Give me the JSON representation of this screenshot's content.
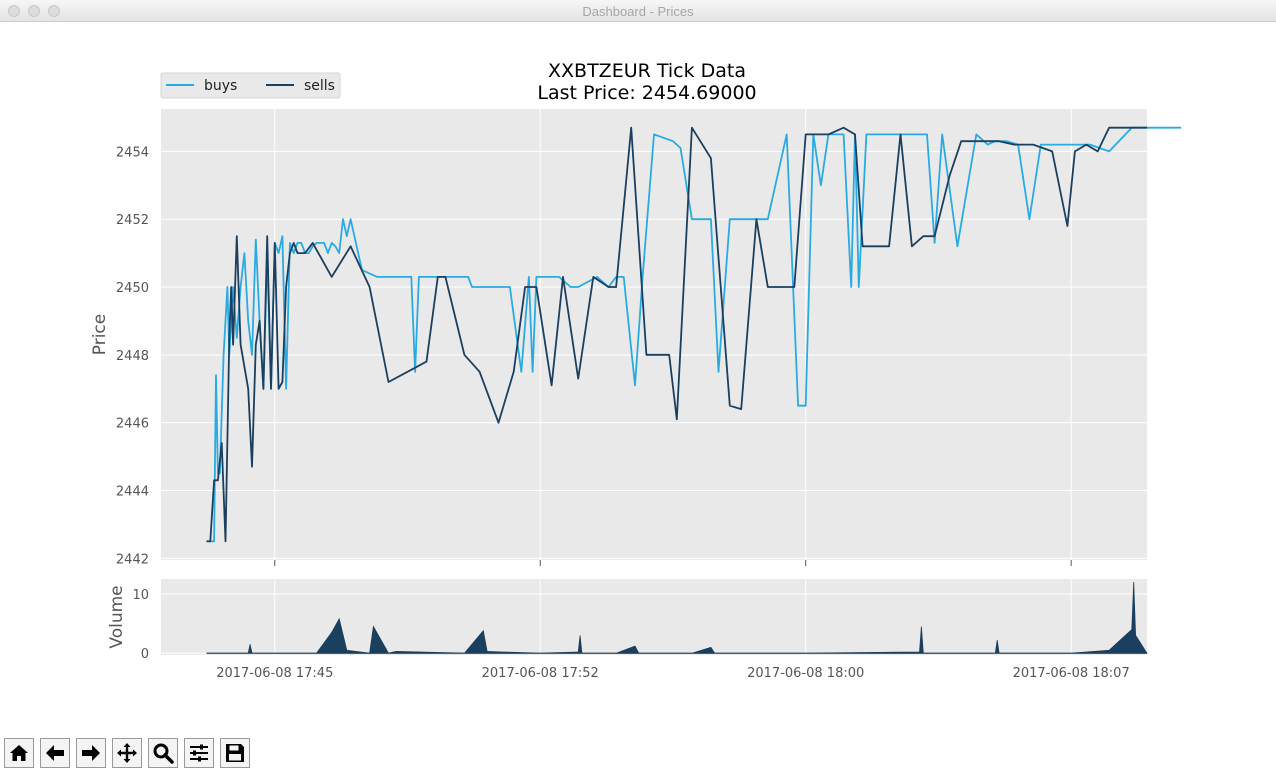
{
  "window": {
    "title": "Dashboard - Prices"
  },
  "toolbar": {
    "buttons": [
      {
        "icon": "home-icon"
      },
      {
        "icon": "back-arrow-icon"
      },
      {
        "icon": "forward-arrow-icon"
      },
      {
        "icon": "pan-icon"
      },
      {
        "icon": "zoom-icon"
      },
      {
        "icon": "configure-subplots-icon"
      },
      {
        "icon": "save-icon"
      }
    ]
  },
  "colors": {
    "buys": "#29abe2",
    "sells": "#1b3f5e",
    "plot_bg": "#e9e9e9",
    "grid": "#ffffff"
  },
  "chart_data": [
    {
      "type": "line",
      "title": "XXBTZEUR Tick Data",
      "subtitle": "Last Price: 2454.69000",
      "ylabel": "Price",
      "xlabel": "",
      "legend": {
        "position": "top-left",
        "entries": [
          "buys",
          "sells"
        ]
      },
      "grid": true,
      "ylim": [
        2441.95,
        2455.25
      ],
      "yticks": [
        2442,
        2444,
        2446,
        2448,
        2450,
        2452,
        2454
      ],
      "xlim_minutes": [
        0,
        26.0
      ],
      "x_unit": "minutes after 2017-06-08 17:42",
      "xticks": [
        {
          "x": 3.0,
          "label": "2017-06-08 17:45"
        },
        {
          "x": 10.0,
          "label": "2017-06-08 17:52"
        },
        {
          "x": 17.0,
          "label": "2017-06-08 18:00"
        },
        {
          "x": 24.0,
          "label": "2017-06-08 18:07"
        }
      ],
      "series": [
        {
          "name": "buys",
          "x": [
            1.3,
            1.4,
            1.45,
            1.5,
            1.55,
            1.65,
            1.75,
            1.8,
            1.9,
            2.0,
            2.1,
            2.2,
            2.3,
            2.4,
            2.5,
            2.6,
            2.7,
            2.8,
            2.9,
            3.0,
            3.1,
            3.2,
            3.3,
            3.4,
            3.5,
            3.6,
            3.7,
            3.8,
            3.9,
            4.0,
            4.1,
            4.2,
            4.3,
            4.4,
            4.5,
            4.6,
            4.7,
            4.8,
            4.9,
            5.0,
            5.3,
            5.7,
            6.0,
            6.3,
            6.6,
            6.7,
            6.8,
            7.0,
            7.5,
            7.8,
            8.0,
            8.1,
            8.2,
            8.5,
            8.8,
            9.2,
            9.5,
            9.7,
            9.8,
            9.9,
            10.4,
            10.5,
            10.8,
            11.0,
            11.5,
            11.8,
            12.0,
            12.2,
            12.5,
            12.7,
            13.0,
            13.5,
            13.7,
            14.0,
            14.5,
            14.7,
            15.0,
            15.2,
            15.5,
            15.7,
            16.0,
            16.5,
            16.8,
            17.0,
            17.2,
            17.4,
            17.6,
            17.8,
            18.0,
            18.2,
            18.3,
            18.4,
            18.6,
            18.8,
            19.0,
            19.2,
            19.4,
            19.6,
            19.8,
            20.0,
            20.2,
            20.4,
            20.6,
            21.0,
            21.5,
            21.8,
            22.0,
            22.3,
            22.6,
            22.9,
            23.2,
            23.6,
            24.0,
            24.5,
            25.0,
            25.6,
            26.0,
            26.3,
            26.9
          ],
          "y": [
            2442.5,
            2442.5,
            2447.4,
            2444.5,
            2444.5,
            2448.0,
            2450.0,
            2448.0,
            2450.0,
            2448.5,
            2450.0,
            2451.0,
            2449.0,
            2448.0,
            2451.4,
            2449.0,
            2447.0,
            2451.0,
            2447.0,
            2451.3,
            2451.0,
            2451.5,
            2447.0,
            2451.3,
            2451.0,
            2451.3,
            2451.3,
            2451.0,
            2451.0,
            2451.2,
            2451.3,
            2451.3,
            2451.3,
            2451.0,
            2451.3,
            2451.2,
            2451.0,
            2452.0,
            2451.5,
            2452.0,
            2450.5,
            2450.3,
            2450.3,
            2450.3,
            2450.3,
            2447.5,
            2450.3,
            2450.3,
            2450.3,
            2450.3,
            2450.3,
            2450.3,
            2450.0,
            2450.0,
            2450.0,
            2450.0,
            2447.5,
            2450.3,
            2447.5,
            2450.3,
            2450.3,
            2450.3,
            2450.0,
            2450.0,
            2450.3,
            2450.0,
            2450.3,
            2450.3,
            2447.1,
            2450.3,
            2454.5,
            2454.3,
            2454.1,
            2452.0,
            2452.0,
            2447.5,
            2452.0,
            2452.0,
            2452.0,
            2452.0,
            2452.0,
            2454.5,
            2446.5,
            2446.5,
            2454.5,
            2453.0,
            2454.5,
            2454.5,
            2454.5,
            2450.0,
            2454.5,
            2450.0,
            2454.5,
            2454.5,
            2454.5,
            2454.5,
            2454.5,
            2454.5,
            2454.5,
            2454.5,
            2454.5,
            2451.3,
            2454.5,
            2451.2,
            2454.5,
            2454.2,
            2454.3,
            2454.3,
            2454.2,
            2452.0,
            2454.2,
            2454.2,
            2454.2,
            2454.2,
            2454.0,
            2454.7,
            2454.7,
            2454.7,
            2454.7
          ]
        },
        {
          "name": "sells",
          "x": [
            1.2,
            1.3,
            1.4,
            1.5,
            1.6,
            1.7,
            1.8,
            1.85,
            1.9,
            2.0,
            2.1,
            2.3,
            2.4,
            2.5,
            2.6,
            2.7,
            2.8,
            2.9,
            3.0,
            3.1,
            3.2,
            3.3,
            3.4,
            3.5,
            3.6,
            3.7,
            3.8,
            4.0,
            4.5,
            5.0,
            5.5,
            6.0,
            6.5,
            7.0,
            7.3,
            7.5,
            8.0,
            8.4,
            8.9,
            9.3,
            9.6,
            9.9,
            10.3,
            10.6,
            11.0,
            11.4,
            11.8,
            12.0,
            12.4,
            12.8,
            13.1,
            13.4,
            13.6,
            14.0,
            14.5,
            15.0,
            15.3,
            15.7,
            16.0,
            16.4,
            16.7,
            17.0,
            17.3,
            17.6,
            18.0,
            18.3,
            18.5,
            18.8,
            19.2,
            19.5,
            19.8,
            20.1,
            20.4,
            20.8,
            21.1,
            21.5,
            21.8,
            22.1,
            22.5,
            23.0,
            23.5,
            23.9,
            24.1,
            24.4,
            24.7,
            25.0,
            25.3,
            25.7,
            26.0
          ],
          "y": [
            2442.5,
            2442.5,
            2444.3,
            2444.3,
            2445.4,
            2442.5,
            2448.5,
            2450.0,
            2448.3,
            2451.5,
            2448.3,
            2447.0,
            2444.7,
            2448.3,
            2449.0,
            2447.0,
            2451.5,
            2447.0,
            2451.3,
            2447.0,
            2447.2,
            2450.0,
            2451.0,
            2451.3,
            2451.0,
            2451.0,
            2451.0,
            2451.3,
            2450.3,
            2451.2,
            2450.0,
            2447.2,
            2447.5,
            2447.8,
            2450.3,
            2450.3,
            2448.0,
            2447.5,
            2446.0,
            2447.5,
            2450.0,
            2450.0,
            2447.1,
            2450.3,
            2447.3,
            2450.3,
            2450.0,
            2450.0,
            2454.7,
            2448.0,
            2448.0,
            2448.0,
            2446.1,
            2454.7,
            2453.8,
            2446.5,
            2446.4,
            2452.0,
            2450.0,
            2450.0,
            2450.0,
            2454.5,
            2454.5,
            2454.5,
            2454.7,
            2454.5,
            2451.2,
            2451.2,
            2451.2,
            2454.5,
            2451.2,
            2451.5,
            2451.5,
            2453.3,
            2454.3,
            2454.3,
            2454.3,
            2454.3,
            2454.2,
            2454.2,
            2454.0,
            2451.8,
            2454.0,
            2454.2,
            2454.0,
            2454.7,
            2454.7,
            2454.7,
            2454.7
          ]
        }
      ]
    },
    {
      "type": "area",
      "ylabel": "Volume",
      "xlabel": "",
      "grid": true,
      "ylim": [
        -0.3,
        12.5
      ],
      "yticks": [
        0,
        10
      ],
      "xlim_minutes": [
        0,
        26.0
      ],
      "series": [
        {
          "name": "volume",
          "x": [
            1.2,
            2.3,
            2.35,
            2.4,
            4.1,
            4.5,
            4.7,
            4.9,
            5.5,
            5.6,
            6.0,
            6.2,
            8.0,
            8.5,
            8.6,
            9.0,
            10.0,
            11.0,
            11.05,
            11.1,
            12.0,
            12.5,
            12.6,
            14.0,
            14.5,
            14.6,
            15.0,
            17.0,
            20.0,
            20.05,
            20.1,
            22.0,
            22.05,
            22.1,
            24.0,
            25.0,
            25.6,
            25.65,
            25.7,
            26.0
          ],
          "y": [
            0,
            0,
            1.5,
            0,
            0,
            3.5,
            5.8,
            0.5,
            0,
            4.5,
            0,
            0.3,
            0,
            3.8,
            0.3,
            0.2,
            0,
            0.2,
            3.0,
            0,
            0,
            1.2,
            0,
            0,
            1.0,
            0,
            0,
            0,
            0.2,
            4.5,
            0,
            0,
            2.2,
            0,
            0,
            0.5,
            4.0,
            12.0,
            3.0,
            0
          ]
        }
      ]
    }
  ]
}
